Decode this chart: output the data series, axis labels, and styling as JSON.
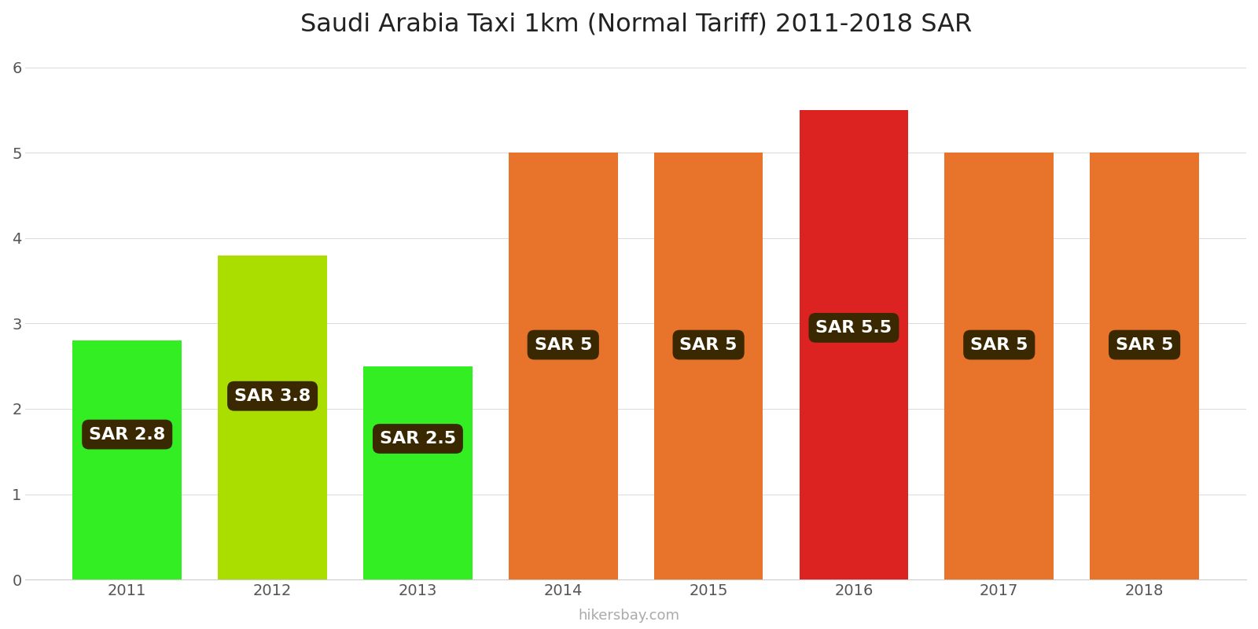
{
  "years": [
    2011,
    2012,
    2013,
    2014,
    2015,
    2016,
    2017,
    2018
  ],
  "values": [
    2.8,
    3.8,
    2.5,
    5.0,
    5.0,
    5.5,
    5.0,
    5.0
  ],
  "bar_colors": [
    "#33ee22",
    "#aadd00",
    "#33ee22",
    "#e8732a",
    "#e8732a",
    "#dd2222",
    "#e8732a",
    "#e8732a"
  ],
  "labels": [
    "SAR 2.8",
    "SAR 3.8",
    "SAR 2.5",
    "SAR 5",
    "SAR 5",
    "SAR 5.5",
    "SAR 5",
    "SAR 5"
  ],
  "title": "Saudi Arabia Taxi 1km (Normal Tariff) 2011-2018 SAR",
  "ylim": [
    0,
    6.2
  ],
  "yticks": [
    0,
    1,
    2,
    3,
    4,
    5,
    6
  ],
  "xlabel": "",
  "ylabel": "",
  "label_box_color": "#3a2800",
  "label_text_color": "#ffffff",
  "background_color": "#ffffff",
  "watermark": "hikersbay.com",
  "title_fontsize": 23,
  "tick_fontsize": 14,
  "label_fontsize": 16,
  "bar_width": 0.75
}
